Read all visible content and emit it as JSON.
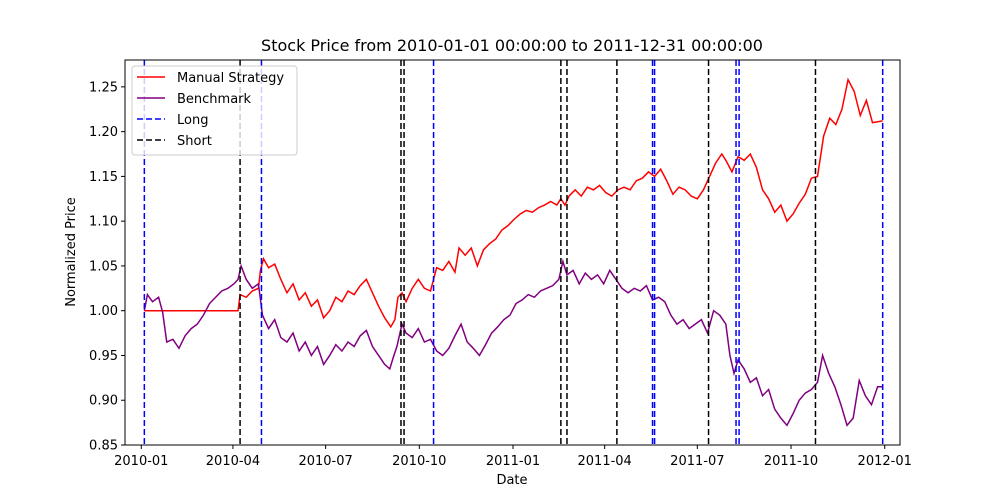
{
  "chart_data": {
    "type": "line",
    "title": "Stock Price from 2010-01-01 00:00:00 to 2011-12-31 00:00:00",
    "xlabel": "Date",
    "ylabel": "Normalized Price",
    "xlim": [
      "2009-12-16",
      "2012-01-16"
    ],
    "ylim": [
      0.85,
      1.28
    ],
    "x_ticks": [
      {
        "date": "2010-01-01",
        "label": "2010-01"
      },
      {
        "date": "2010-04-01",
        "label": "2010-04"
      },
      {
        "date": "2010-07-01",
        "label": "2010-07"
      },
      {
        "date": "2010-10-01",
        "label": "2010-10"
      },
      {
        "date": "2011-01-01",
        "label": "2011-01"
      },
      {
        "date": "2011-04-01",
        "label": "2011-04"
      },
      {
        "date": "2011-07-01",
        "label": "2011-07"
      },
      {
        "date": "2011-10-01",
        "label": "2011-10"
      },
      {
        "date": "2012-01-01",
        "label": "2012-01"
      }
    ],
    "y_ticks": [
      {
        "value": 0.85,
        "label": "0.85"
      },
      {
        "value": 0.9,
        "label": "0.90"
      },
      {
        "value": 0.95,
        "label": "0.95"
      },
      {
        "value": 1.0,
        "label": "1.00"
      },
      {
        "value": 1.05,
        "label": "1.05"
      },
      {
        "value": 1.1,
        "label": "1.10"
      },
      {
        "value": 1.15,
        "label": "1.15"
      },
      {
        "value": 1.2,
        "label": "1.20"
      },
      {
        "value": 1.25,
        "label": "1.25"
      }
    ],
    "legend_position": "top-left",
    "grid": false,
    "series": [
      {
        "name": "Manual Strategy",
        "color": "#ff0000",
        "points": [
          [
            "2010-01-04",
            1.0
          ],
          [
            "2010-02-01",
            1.0
          ],
          [
            "2010-03-01",
            1.0
          ],
          [
            "2010-04-06",
            1.0
          ],
          [
            "2010-04-08",
            1.018
          ],
          [
            "2010-04-14",
            1.015
          ],
          [
            "2010-04-20",
            1.022
          ],
          [
            "2010-04-26",
            1.025
          ],
          [
            "2010-04-28",
            1.045
          ],
          [
            "2010-05-01",
            1.058
          ],
          [
            "2010-05-06",
            1.048
          ],
          [
            "2010-05-12",
            1.052
          ],
          [
            "2010-05-18",
            1.035
          ],
          [
            "2010-05-24",
            1.02
          ],
          [
            "2010-05-30",
            1.03
          ],
          [
            "2010-06-05",
            1.012
          ],
          [
            "2010-06-11",
            1.02
          ],
          [
            "2010-06-17",
            1.005
          ],
          [
            "2010-06-23",
            1.012
          ],
          [
            "2010-06-29",
            0.992
          ],
          [
            "2010-07-05",
            1.0
          ],
          [
            "2010-07-11",
            1.015
          ],
          [
            "2010-07-17",
            1.01
          ],
          [
            "2010-07-23",
            1.022
          ],
          [
            "2010-07-29",
            1.018
          ],
          [
            "2010-08-04",
            1.028
          ],
          [
            "2010-08-10",
            1.035
          ],
          [
            "2010-08-16",
            1.02
          ],
          [
            "2010-08-22",
            1.005
          ],
          [
            "2010-08-28",
            0.992
          ],
          [
            "2010-09-03",
            0.982
          ],
          [
            "2010-09-07",
            0.99
          ],
          [
            "2010-09-10",
            1.015
          ],
          [
            "2010-09-14",
            1.02
          ],
          [
            "2010-09-18",
            1.01
          ],
          [
            "2010-09-24",
            1.025
          ],
          [
            "2010-09-30",
            1.035
          ],
          [
            "2010-10-06",
            1.025
          ],
          [
            "2010-10-12",
            1.022
          ],
          [
            "2010-10-15",
            1.035
          ],
          [
            "2010-10-18",
            1.048
          ],
          [
            "2010-10-24",
            1.045
          ],
          [
            "2010-10-30",
            1.055
          ],
          [
            "2010-11-05",
            1.043
          ],
          [
            "2010-11-09",
            1.07
          ],
          [
            "2010-11-15",
            1.062
          ],
          [
            "2010-11-21",
            1.07
          ],
          [
            "2010-11-27",
            1.05
          ],
          [
            "2010-12-03",
            1.068
          ],
          [
            "2010-12-09",
            1.075
          ],
          [
            "2010-12-15",
            1.08
          ],
          [
            "2010-12-21",
            1.09
          ],
          [
            "2010-12-27",
            1.095
          ],
          [
            "2011-01-02",
            1.102
          ],
          [
            "2011-01-08",
            1.108
          ],
          [
            "2011-01-14",
            1.112
          ],
          [
            "2011-01-20",
            1.11
          ],
          [
            "2011-01-26",
            1.115
          ],
          [
            "2011-02-01",
            1.118
          ],
          [
            "2011-02-07",
            1.122
          ],
          [
            "2011-02-13",
            1.118
          ],
          [
            "2011-02-17",
            1.125
          ],
          [
            "2011-02-21",
            1.118
          ],
          [
            "2011-02-25",
            1.128
          ],
          [
            "2011-03-03",
            1.135
          ],
          [
            "2011-03-09",
            1.128
          ],
          [
            "2011-03-15",
            1.138
          ],
          [
            "2011-03-21",
            1.135
          ],
          [
            "2011-03-27",
            1.14
          ],
          [
            "2011-04-02",
            1.132
          ],
          [
            "2011-04-08",
            1.128
          ],
          [
            "2011-04-14",
            1.135
          ],
          [
            "2011-04-20",
            1.138
          ],
          [
            "2011-04-26",
            1.135
          ],
          [
            "2011-05-02",
            1.145
          ],
          [
            "2011-05-08",
            1.148
          ],
          [
            "2011-05-14",
            1.155
          ],
          [
            "2011-05-20",
            1.15
          ],
          [
            "2011-05-26",
            1.158
          ],
          [
            "2011-06-01",
            1.145
          ],
          [
            "2011-06-07",
            1.13
          ],
          [
            "2011-06-13",
            1.138
          ],
          [
            "2011-06-19",
            1.135
          ],
          [
            "2011-06-25",
            1.128
          ],
          [
            "2011-07-01",
            1.125
          ],
          [
            "2011-07-07",
            1.135
          ],
          [
            "2011-07-13",
            1.15
          ],
          [
            "2011-07-19",
            1.165
          ],
          [
            "2011-07-25",
            1.175
          ],
          [
            "2011-07-29",
            1.168
          ],
          [
            "2011-08-04",
            1.155
          ],
          [
            "2011-08-10",
            1.172
          ],
          [
            "2011-08-16",
            1.168
          ],
          [
            "2011-08-22",
            1.175
          ],
          [
            "2011-08-28",
            1.16
          ],
          [
            "2011-09-03",
            1.135
          ],
          [
            "2011-09-09",
            1.125
          ],
          [
            "2011-09-15",
            1.11
          ],
          [
            "2011-09-21",
            1.118
          ],
          [
            "2011-09-27",
            1.1
          ],
          [
            "2011-10-03",
            1.108
          ],
          [
            "2011-10-09",
            1.12
          ],
          [
            "2011-10-15",
            1.13
          ],
          [
            "2011-10-21",
            1.148
          ],
          [
            "2011-10-27",
            1.15
          ],
          [
            "2011-11-02",
            1.195
          ],
          [
            "2011-11-08",
            1.215
          ],
          [
            "2011-11-14",
            1.208
          ],
          [
            "2011-11-20",
            1.225
          ],
          [
            "2011-11-26",
            1.258
          ],
          [
            "2011-12-02",
            1.245
          ],
          [
            "2011-12-08",
            1.218
          ],
          [
            "2011-12-14",
            1.235
          ],
          [
            "2011-12-20",
            1.21
          ],
          [
            "2011-12-30",
            1.212
          ]
        ]
      },
      {
        "name": "Benchmark",
        "color": "#800080",
        "points": [
          [
            "2010-01-04",
            1.0
          ],
          [
            "2010-01-07",
            1.018
          ],
          [
            "2010-01-12",
            1.01
          ],
          [
            "2010-01-18",
            1.015
          ],
          [
            "2010-01-22",
            0.998
          ],
          [
            "2010-01-26",
            0.965
          ],
          [
            "2010-02-01",
            0.968
          ],
          [
            "2010-02-07",
            0.958
          ],
          [
            "2010-02-13",
            0.972
          ],
          [
            "2010-02-19",
            0.98
          ],
          [
            "2010-02-25",
            0.985
          ],
          [
            "2010-03-03",
            0.995
          ],
          [
            "2010-03-09",
            1.008
          ],
          [
            "2010-03-15",
            1.015
          ],
          [
            "2010-03-21",
            1.022
          ],
          [
            "2010-03-27",
            1.025
          ],
          [
            "2010-04-02",
            1.03
          ],
          [
            "2010-04-06",
            1.035
          ],
          [
            "2010-04-09",
            1.05
          ],
          [
            "2010-04-14",
            1.035
          ],
          [
            "2010-04-20",
            1.025
          ],
          [
            "2010-04-26",
            1.03
          ],
          [
            "2010-04-30",
            0.995
          ],
          [
            "2010-05-06",
            0.98
          ],
          [
            "2010-05-12",
            0.99
          ],
          [
            "2010-05-18",
            0.97
          ],
          [
            "2010-05-24",
            0.965
          ],
          [
            "2010-05-30",
            0.975
          ],
          [
            "2010-06-05",
            0.955
          ],
          [
            "2010-06-11",
            0.965
          ],
          [
            "2010-06-17",
            0.95
          ],
          [
            "2010-06-23",
            0.96
          ],
          [
            "2010-06-29",
            0.94
          ],
          [
            "2010-07-05",
            0.95
          ],
          [
            "2010-07-11",
            0.962
          ],
          [
            "2010-07-17",
            0.955
          ],
          [
            "2010-07-23",
            0.965
          ],
          [
            "2010-07-29",
            0.96
          ],
          [
            "2010-08-04",
            0.972
          ],
          [
            "2010-08-10",
            0.978
          ],
          [
            "2010-08-16",
            0.96
          ],
          [
            "2010-08-22",
            0.95
          ],
          [
            "2010-08-28",
            0.94
          ],
          [
            "2010-09-02",
            0.935
          ],
          [
            "2010-09-06",
            0.95
          ],
          [
            "2010-09-09",
            0.96
          ],
          [
            "2010-09-14",
            0.985
          ],
          [
            "2010-09-18",
            0.975
          ],
          [
            "2010-09-24",
            0.97
          ],
          [
            "2010-09-30",
            0.98
          ],
          [
            "2010-10-06",
            0.965
          ],
          [
            "2010-10-12",
            0.968
          ],
          [
            "2010-10-18",
            0.955
          ],
          [
            "2010-10-24",
            0.95
          ],
          [
            "2010-10-30",
            0.958
          ],
          [
            "2010-11-05",
            0.972
          ],
          [
            "2010-11-11",
            0.985
          ],
          [
            "2010-11-17",
            0.965
          ],
          [
            "2010-11-23",
            0.958
          ],
          [
            "2010-11-29",
            0.95
          ],
          [
            "2010-12-05",
            0.962
          ],
          [
            "2010-12-11",
            0.975
          ],
          [
            "2010-12-17",
            0.982
          ],
          [
            "2010-12-23",
            0.99
          ],
          [
            "2010-12-29",
            0.995
          ],
          [
            "2011-01-04",
            1.008
          ],
          [
            "2011-01-10",
            1.012
          ],
          [
            "2011-01-16",
            1.018
          ],
          [
            "2011-01-22",
            1.015
          ],
          [
            "2011-01-28",
            1.022
          ],
          [
            "2011-02-03",
            1.025
          ],
          [
            "2011-02-09",
            1.028
          ],
          [
            "2011-02-15",
            1.035
          ],
          [
            "2011-02-19",
            1.055
          ],
          [
            "2011-02-23",
            1.04
          ],
          [
            "2011-03-01",
            1.045
          ],
          [
            "2011-03-07",
            1.03
          ],
          [
            "2011-03-13",
            1.042
          ],
          [
            "2011-03-19",
            1.035
          ],
          [
            "2011-03-25",
            1.04
          ],
          [
            "2011-03-31",
            1.03
          ],
          [
            "2011-04-06",
            1.045
          ],
          [
            "2011-04-12",
            1.035
          ],
          [
            "2011-04-18",
            1.025
          ],
          [
            "2011-04-24",
            1.02
          ],
          [
            "2011-04-30",
            1.025
          ],
          [
            "2011-05-06",
            1.022
          ],
          [
            "2011-05-12",
            1.028
          ],
          [
            "2011-05-18",
            1.012
          ],
          [
            "2011-05-24",
            1.015
          ],
          [
            "2011-05-30",
            1.01
          ],
          [
            "2011-06-05",
            0.995
          ],
          [
            "2011-06-11",
            0.985
          ],
          [
            "2011-06-17",
            0.99
          ],
          [
            "2011-06-23",
            0.98
          ],
          [
            "2011-06-29",
            0.985
          ],
          [
            "2011-07-05",
            0.99
          ],
          [
            "2011-07-11",
            0.975
          ],
          [
            "2011-07-17",
            1.0
          ],
          [
            "2011-07-23",
            0.995
          ],
          [
            "2011-07-29",
            0.985
          ],
          [
            "2011-08-02",
            0.95
          ],
          [
            "2011-08-06",
            0.93
          ],
          [
            "2011-08-10",
            0.945
          ],
          [
            "2011-08-16",
            0.935
          ],
          [
            "2011-08-22",
            0.92
          ],
          [
            "2011-08-28",
            0.925
          ],
          [
            "2011-09-03",
            0.905
          ],
          [
            "2011-09-09",
            0.912
          ],
          [
            "2011-09-15",
            0.89
          ],
          [
            "2011-09-21",
            0.88
          ],
          [
            "2011-09-27",
            0.872
          ],
          [
            "2011-10-03",
            0.885
          ],
          [
            "2011-10-09",
            0.9
          ],
          [
            "2011-10-15",
            0.908
          ],
          [
            "2011-10-21",
            0.912
          ],
          [
            "2011-10-27",
            0.92
          ],
          [
            "2011-11-01",
            0.95
          ],
          [
            "2011-11-07",
            0.93
          ],
          [
            "2011-11-13",
            0.915
          ],
          [
            "2011-11-19",
            0.895
          ],
          [
            "2011-11-25",
            0.872
          ],
          [
            "2011-12-01",
            0.88
          ],
          [
            "2011-12-07",
            0.922
          ],
          [
            "2011-12-13",
            0.905
          ],
          [
            "2011-12-19",
            0.895
          ],
          [
            "2011-12-25",
            0.915
          ],
          [
            "2011-12-30",
            0.915
          ]
        ]
      }
    ],
    "vlines": [
      {
        "name": "Long",
        "color": "#0000ff",
        "dates": [
          "2010-01-04",
          "2010-04-29",
          "2010-10-15",
          "2011-05-18",
          "2011-05-20",
          "2011-08-08",
          "2011-08-11",
          "2011-12-30"
        ]
      },
      {
        "name": "Short",
        "color": "#000000",
        "dates": [
          "2010-04-08",
          "2010-09-13",
          "2010-09-16",
          "2011-02-17",
          "2011-02-23",
          "2011-04-13",
          "2011-07-12",
          "2011-10-25"
        ]
      }
    ]
  }
}
